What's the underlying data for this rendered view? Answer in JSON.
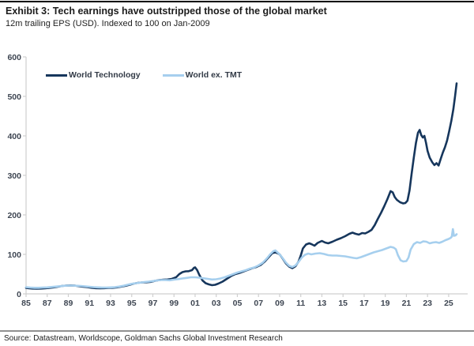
{
  "header": {
    "title": "Exhibit 3: Tech earnings have outstripped those of the global market",
    "subtitle": "12m trailing EPS (USD). Indexed to 100 on Jan-2009"
  },
  "footer": {
    "source": "Source: Datastream, Worldscope, Goldman Sachs Global Investment Research"
  },
  "chart_data": {
    "type": "line",
    "title": "Exhibit 3: Tech earnings have outstripped those of the global market",
    "subtitle": "12m trailing EPS (USD). Indexed to 100 on Jan-2009",
    "grid": "off",
    "legend_position": "top-left-inside",
    "x_axis": {
      "range": [
        1985,
        2026.8
      ],
      "tick_years": [
        1985,
        1987,
        1989,
        1991,
        1993,
        1995,
        1997,
        1999,
        2001,
        2003,
        2005,
        2007,
        2009,
        2011,
        2013,
        2015,
        2017,
        2019,
        2021,
        2023,
        2025
      ],
      "tick_labels": [
        "85",
        "87",
        "89",
        "91",
        "93",
        "95",
        "97",
        "99",
        "01",
        "03",
        "05",
        "07",
        "09",
        "11",
        "13",
        "15",
        "17",
        "19",
        "21",
        "23",
        "25"
      ]
    },
    "y_axis": {
      "range": [
        0,
        600
      ],
      "ticks": [
        0,
        100,
        200,
        300,
        400,
        500,
        600
      ]
    },
    "series": [
      {
        "name": "World Technology",
        "color": "#16365c",
        "points": [
          [
            1985.0,
            15
          ],
          [
            1985.3,
            14
          ],
          [
            1985.6,
            13.5
          ],
          [
            1986.0,
            13
          ],
          [
            1986.4,
            13.5
          ],
          [
            1986.8,
            14
          ],
          [
            1987.2,
            15
          ],
          [
            1987.6,
            16.5
          ],
          [
            1988.0,
            18
          ],
          [
            1988.4,
            20
          ],
          [
            1988.8,
            21
          ],
          [
            1989.2,
            21.5
          ],
          [
            1989.6,
            21
          ],
          [
            1990.0,
            19.5
          ],
          [
            1990.4,
            18
          ],
          [
            1990.8,
            17
          ],
          [
            1991.2,
            15.5
          ],
          [
            1991.6,
            14.5
          ],
          [
            1992.0,
            14
          ],
          [
            1992.4,
            14.5
          ],
          [
            1992.8,
            15
          ],
          [
            1993.2,
            15.5
          ],
          [
            1993.6,
            16.5
          ],
          [
            1994.0,
            18.5
          ],
          [
            1994.4,
            20.5
          ],
          [
            1994.8,
            23
          ],
          [
            1995.2,
            26
          ],
          [
            1995.6,
            28
          ],
          [
            1996.0,
            29
          ],
          [
            1996.4,
            29.5
          ],
          [
            1996.8,
            30.5
          ],
          [
            1997.2,
            33
          ],
          [
            1997.6,
            35
          ],
          [
            1998.0,
            36
          ],
          [
            1998.4,
            36.5
          ],
          [
            1998.8,
            38
          ],
          [
            1999.2,
            42
          ],
          [
            1999.5,
            50
          ],
          [
            1999.8,
            55
          ],
          [
            2000.1,
            57
          ],
          [
            2000.4,
            57.5
          ],
          [
            2000.7,
            60
          ],
          [
            2000.9,
            66
          ],
          [
            2001.0,
            67
          ],
          [
            2001.2,
            60
          ],
          [
            2001.4,
            48
          ],
          [
            2001.7,
            34
          ],
          [
            2002.0,
            27
          ],
          [
            2002.3,
            24
          ],
          [
            2002.6,
            22
          ],
          [
            2002.9,
            23
          ],
          [
            2003.2,
            26
          ],
          [
            2003.6,
            31
          ],
          [
            2004.0,
            38
          ],
          [
            2004.4,
            45
          ],
          [
            2004.8,
            50
          ],
          [
            2005.2,
            53
          ],
          [
            2005.6,
            57
          ],
          [
            2006.0,
            61
          ],
          [
            2006.4,
            65
          ],
          [
            2006.8,
            68
          ],
          [
            2007.2,
            73
          ],
          [
            2007.6,
            82
          ],
          [
            2008.0,
            94
          ],
          [
            2008.3,
            103
          ],
          [
            2008.6,
            105
          ],
          [
            2008.8,
            103
          ],
          [
            2009.0,
            100
          ],
          [
            2009.3,
            89
          ],
          [
            2009.6,
            77
          ],
          [
            2009.9,
            69
          ],
          [
            2010.2,
            65
          ],
          [
            2010.5,
            70
          ],
          [
            2010.8,
            82
          ],
          [
            2011.0,
            97
          ],
          [
            2011.2,
            115
          ],
          [
            2011.5,
            125
          ],
          [
            2011.8,
            128
          ],
          [
            2012.0,
            126
          ],
          [
            2012.3,
            122
          ],
          [
            2012.6,
            129
          ],
          [
            2013.0,
            134
          ],
          [
            2013.3,
            130
          ],
          [
            2013.6,
            128
          ],
          [
            2014.0,
            132
          ],
          [
            2014.4,
            137
          ],
          [
            2014.8,
            141
          ],
          [
            2015.2,
            146
          ],
          [
            2015.6,
            152
          ],
          [
            2015.9,
            155
          ],
          [
            2016.2,
            152
          ],
          [
            2016.5,
            150
          ],
          [
            2016.8,
            154
          ],
          [
            2017.1,
            153
          ],
          [
            2017.4,
            157
          ],
          [
            2017.7,
            162
          ],
          [
            2018.0,
            174
          ],
          [
            2018.3,
            190
          ],
          [
            2018.6,
            205
          ],
          [
            2018.9,
            222
          ],
          [
            2019.2,
            240
          ],
          [
            2019.5,
            260
          ],
          [
            2019.7,
            257
          ],
          [
            2019.9,
            245
          ],
          [
            2020.1,
            238
          ],
          [
            2020.4,
            232
          ],
          [
            2020.7,
            229
          ],
          [
            2020.9,
            230
          ],
          [
            2021.1,
            236
          ],
          [
            2021.3,
            262
          ],
          [
            2021.5,
            305
          ],
          [
            2021.7,
            345
          ],
          [
            2021.9,
            382
          ],
          [
            2022.1,
            408
          ],
          [
            2022.25,
            415
          ],
          [
            2022.4,
            402
          ],
          [
            2022.55,
            396
          ],
          [
            2022.7,
            400
          ],
          [
            2022.85,
            383
          ],
          [
            2023.0,
            362
          ],
          [
            2023.2,
            345
          ],
          [
            2023.45,
            333
          ],
          [
            2023.65,
            326
          ],
          [
            2023.85,
            331
          ],
          [
            2024.05,
            325
          ],
          [
            2024.25,
            342
          ],
          [
            2024.45,
            358
          ],
          [
            2024.65,
            371
          ],
          [
            2024.85,
            388
          ],
          [
            2025.05,
            412
          ],
          [
            2025.25,
            438
          ],
          [
            2025.45,
            468
          ],
          [
            2025.6,
            500
          ],
          [
            2025.75,
            533
          ]
        ]
      },
      {
        "name": "World ex. TMT",
        "color": "#a6cfee",
        "points": [
          [
            1985.0,
            17
          ],
          [
            1985.4,
            16
          ],
          [
            1985.8,
            15.5
          ],
          [
            1986.2,
            15.5
          ],
          [
            1986.6,
            16
          ],
          [
            1987.0,
            16.5
          ],
          [
            1987.4,
            17.5
          ],
          [
            1987.8,
            18.5
          ],
          [
            1988.2,
            19.5
          ],
          [
            1988.6,
            20.5
          ],
          [
            1989.0,
            21
          ],
          [
            1989.4,
            21
          ],
          [
            1989.8,
            20.5
          ],
          [
            1990.2,
            20
          ],
          [
            1990.6,
            19
          ],
          [
            1991.0,
            18
          ],
          [
            1991.4,
            17
          ],
          [
            1991.8,
            16.5
          ],
          [
            1992.2,
            16
          ],
          [
            1992.6,
            16
          ],
          [
            1993.0,
            16.5
          ],
          [
            1993.4,
            17
          ],
          [
            1993.8,
            18.5
          ],
          [
            1994.2,
            20.5
          ],
          [
            1994.6,
            23
          ],
          [
            1995.0,
            25.5
          ],
          [
            1995.4,
            27
          ],
          [
            1995.8,
            28.5
          ],
          [
            1996.2,
            30
          ],
          [
            1996.6,
            31
          ],
          [
            1997.0,
            32.5
          ],
          [
            1997.4,
            34
          ],
          [
            1997.8,
            35
          ],
          [
            1998.2,
            35
          ],
          [
            1998.6,
            34.5
          ],
          [
            1999.0,
            36
          ],
          [
            1999.4,
            37.5
          ],
          [
            1999.8,
            39
          ],
          [
            2000.2,
            40.5
          ],
          [
            2000.6,
            42
          ],
          [
            2001.0,
            42
          ],
          [
            2001.4,
            41
          ],
          [
            2001.8,
            39.5
          ],
          [
            2002.2,
            38
          ],
          [
            2002.6,
            36.5
          ],
          [
            2003.0,
            37
          ],
          [
            2003.4,
            39
          ],
          [
            2003.8,
            42
          ],
          [
            2004.2,
            46
          ],
          [
            2004.6,
            50
          ],
          [
            2005.0,
            54
          ],
          [
            2005.4,
            57
          ],
          [
            2005.8,
            60
          ],
          [
            2006.2,
            64
          ],
          [
            2006.6,
            67
          ],
          [
            2007.0,
            72
          ],
          [
            2007.4,
            79
          ],
          [
            2007.8,
            90
          ],
          [
            2008.1,
            100
          ],
          [
            2008.4,
            108
          ],
          [
            2008.6,
            110
          ],
          [
            2008.8,
            105
          ],
          [
            2009.0,
            100
          ],
          [
            2009.3,
            90
          ],
          [
            2009.6,
            79
          ],
          [
            2009.9,
            71
          ],
          [
            2010.2,
            68
          ],
          [
            2010.5,
            72
          ],
          [
            2010.8,
            81
          ],
          [
            2011.1,
            92
          ],
          [
            2011.4,
            99
          ],
          [
            2011.7,
            102
          ],
          [
            2012.0,
            100
          ],
          [
            2012.4,
            102
          ],
          [
            2012.8,
            103
          ],
          [
            2013.2,
            101
          ],
          [
            2013.6,
            98
          ],
          [
            2014.0,
            97
          ],
          [
            2014.4,
            97
          ],
          [
            2014.8,
            96
          ],
          [
            2015.2,
            95
          ],
          [
            2015.6,
            93
          ],
          [
            2016.0,
            91
          ],
          [
            2016.3,
            90
          ],
          [
            2016.7,
            93
          ],
          [
            2017.1,
            97
          ],
          [
            2017.5,
            101
          ],
          [
            2017.9,
            105
          ],
          [
            2018.3,
            108
          ],
          [
            2018.7,
            111
          ],
          [
            2019.1,
            115
          ],
          [
            2019.5,
            119
          ],
          [
            2019.8,
            117
          ],
          [
            2020.0,
            113
          ],
          [
            2020.2,
            98
          ],
          [
            2020.45,
            85
          ],
          [
            2020.7,
            82
          ],
          [
            2021.0,
            83
          ],
          [
            2021.2,
            92
          ],
          [
            2021.4,
            112
          ],
          [
            2021.7,
            126
          ],
          [
            2022.0,
            131
          ],
          [
            2022.3,
            129
          ],
          [
            2022.6,
            133
          ],
          [
            2022.9,
            132
          ],
          [
            2023.2,
            128
          ],
          [
            2023.5,
            130
          ],
          [
            2023.8,
            131
          ],
          [
            2024.1,
            129
          ],
          [
            2024.4,
            132
          ],
          [
            2024.7,
            136
          ],
          [
            2025.0,
            139
          ],
          [
            2025.2,
            142
          ],
          [
            2025.3,
            145
          ],
          [
            2025.4,
            164
          ],
          [
            2025.5,
            147
          ],
          [
            2025.65,
            148
          ],
          [
            2025.75,
            151
          ]
        ]
      }
    ]
  }
}
